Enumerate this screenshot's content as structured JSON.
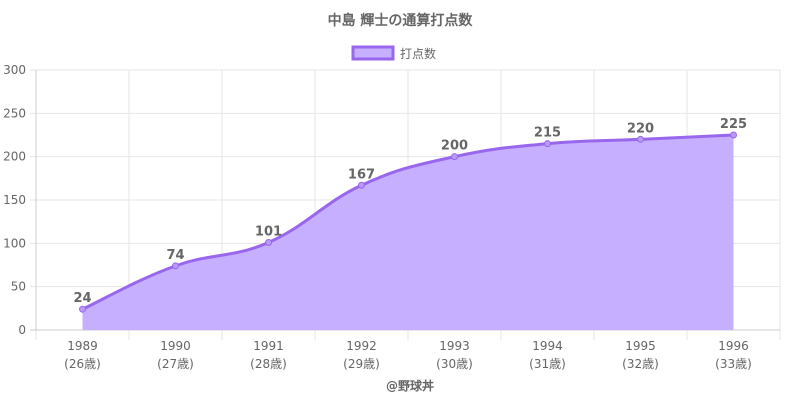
{
  "chart_data": {
    "type": "area",
    "title": "中島 輝士の通算打点数",
    "legend": [
      "打点数"
    ],
    "categories": [
      "1989",
      "1990",
      "1991",
      "1992",
      "1993",
      "1994",
      "1995",
      "1996"
    ],
    "sublabels": [
      "(26歳)",
      "(27歳)",
      "(28歳)",
      "(29歳)",
      "(30歳)",
      "(31歳)",
      "(32歳)",
      "(33歳)"
    ],
    "series": [
      {
        "name": "打点数",
        "values": [
          24,
          74,
          101,
          167,
          200,
          215,
          220,
          225
        ]
      }
    ],
    "ylim": [
      0,
      300
    ],
    "yticks": [
      "0",
      "50",
      "100",
      "150",
      "200",
      "250",
      "300"
    ],
    "grid": true,
    "legend_position": "top",
    "colors": {
      "line": "#9966ee",
      "fill": "#c7afff",
      "grid": "#e6e6e6",
      "text": "#666666"
    }
  },
  "credit": "@野球丼"
}
